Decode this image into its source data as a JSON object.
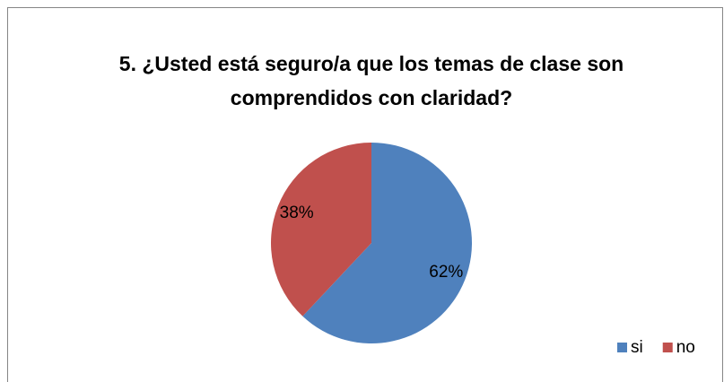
{
  "chart_data": {
    "type": "pie",
    "title": "5. ¿Usted está seguro/a que los temas de clase son comprendidos con claridad?",
    "categories": [
      "si",
      "no"
    ],
    "values": [
      62,
      38
    ],
    "value_labels": [
      "62%",
      "38%"
    ],
    "colors": [
      "#4f81bd",
      "#c0504d"
    ],
    "legend": "bottom-right"
  }
}
